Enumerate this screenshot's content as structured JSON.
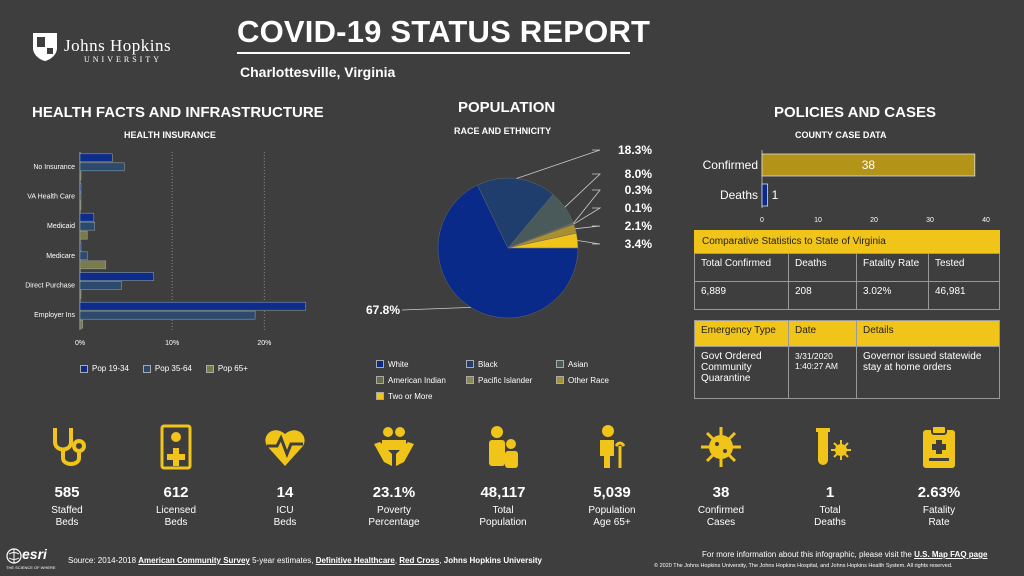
{
  "logo": {
    "line1": "Johns Hopkins",
    "line2": "UNIVERSITY"
  },
  "header": {
    "title": "COVID-19 STATUS REPORT",
    "subtitle": "Charlottesville,  Virginia"
  },
  "health": {
    "title": "HEALTH FACTS AND INFRASTRUCTURE",
    "subtitle": "HEALTH INSURANCE",
    "ticks": [
      "0%",
      "10%",
      "20%"
    ],
    "legend": [
      "Pop 19-34",
      "Pop 35-64",
      "Pop 65+"
    ]
  },
  "population": {
    "title": "POPULATION",
    "subtitle": "RACE AND ETHNICITY",
    "labels": [
      "18.3%",
      "8.0%",
      "0.3%",
      "0.1%",
      "2.1%",
      "3.4%",
      "67.8%"
    ],
    "legend": [
      "White",
      "Black",
      "Asian",
      "American Indian",
      "Pacific Islander",
      "Other Race",
      "Two or More"
    ]
  },
  "policies": {
    "title": "POLICIES AND CASES",
    "subtitle": "COUNTY CASE DATA",
    "bar_labels": [
      "Confirmed",
      "Deaths"
    ],
    "bar_values": [
      "38",
      "1"
    ],
    "ticks": [
      "0",
      "10",
      "20",
      "30",
      "40"
    ],
    "cmp_title": "Comparative Statistics to State of Virginia",
    "cmp_headers": [
      "Total Confirmed",
      "Deaths",
      "Fatality Rate",
      "Tested"
    ],
    "cmp_values": [
      "6,889",
      "208",
      "3.02%",
      "46,981"
    ],
    "emerg_headers": [
      "Emergency Type",
      "Date",
      "Details"
    ],
    "emerg_type": "Govt Ordered Community Quarantine",
    "emerg_date": "3/31/2020 1:40:27 AM",
    "emerg_details": "Governor issued statewide stay at home orders"
  },
  "chart_data": [
    {
      "type": "bar",
      "subtitle": "HEALTH INSURANCE",
      "categories": [
        "No Insurance",
        "VA Health Care",
        "Medicaid",
        "Medicare",
        "Direct Purchase",
        "Employer Ins"
      ],
      "series": [
        {
          "name": "Pop 19-34",
          "values": [
            3.5,
            0.1,
            1.5,
            0.1,
            8.0,
            24.5
          ],
          "color": "#0d2c8c"
        },
        {
          "name": "Pop 35-64",
          "values": [
            4.8,
            0.1,
            1.6,
            0.8,
            4.5,
            19.0
          ],
          "color": "#2c4a6e"
        },
        {
          "name": "Pop 65+",
          "values": [
            0.0,
            0.1,
            0.8,
            2.8,
            0.1,
            0.3
          ],
          "color": "#7a7a4a"
        }
      ],
      "xlim": [
        0,
        27
      ]
    },
    {
      "type": "pie",
      "subtitle": "RACE AND ETHNICITY",
      "categories": [
        "White",
        "Black",
        "Asian",
        "American Indian",
        "Pacific Islander",
        "Other Race",
        "Two or More"
      ],
      "values": [
        67.8,
        18.3,
        8.0,
        0.3,
        0.1,
        2.1,
        3.4
      ],
      "colors": [
        "#0a2a8a",
        "#1f3e6e",
        "#4a5a5a",
        "#6a6a4a",
        "#888855",
        "#a89030",
        "#f0c419"
      ]
    },
    {
      "type": "bar",
      "subtitle": "COUNTY CASE DATA",
      "categories": [
        "Confirmed",
        "Deaths"
      ],
      "values": [
        38,
        1
      ],
      "xlim": [
        0,
        40
      ],
      "colors": [
        "#b39419",
        "#0a2a8a"
      ]
    }
  ],
  "stats": [
    {
      "num": "585",
      "label": "Staffed\nBeds",
      "icon": "stethoscope-icon"
    },
    {
      "num": "612",
      "label": "Licensed\nBeds",
      "icon": "medical-card-icon"
    },
    {
      "num": "14",
      "label": "ICU\nBeds",
      "icon": "heartbeat-icon"
    },
    {
      "num": "23.1%",
      "label": "Poverty\nPercentage",
      "icon": "hands-people-icon"
    },
    {
      "num": "48,117",
      "label": "Total\nPopulation",
      "icon": "family-icon"
    },
    {
      "num": "5,039",
      "label": "Population\nAge 65+",
      "icon": "elderly-icon"
    },
    {
      "num": "38",
      "label": "Confirmed\nCases",
      "icon": "virus-icon"
    },
    {
      "num": "1",
      "label": "Total\nDeaths",
      "icon": "test-tube-icon"
    },
    {
      "num": "2.63%",
      "label": "Fatality\nRate",
      "icon": "clipboard-icon"
    }
  ],
  "footer": {
    "esri": "esri",
    "esri_tag": "THE SCIENCE OF WHERE",
    "source_prefix": "Source: 2014-2018 ",
    "source_links": [
      "American Community Survey",
      "Definitive Healthcare",
      "Red Cross"
    ],
    "source_mid": " 5-year estimates, ",
    "source_jhu": "Johns Hopkins University",
    "info_prefix": "For more information about this infographic, please visit the ",
    "info_link": "U.S. Map FAQ page",
    "copyright": "© 2020 The Johns Hopkins University, The Johns Hopkins Hospital, and Johns Hopkins Health System. All rights reserved."
  },
  "colors": {
    "accent": "#f0c419",
    "background": "#3e3e3e"
  }
}
